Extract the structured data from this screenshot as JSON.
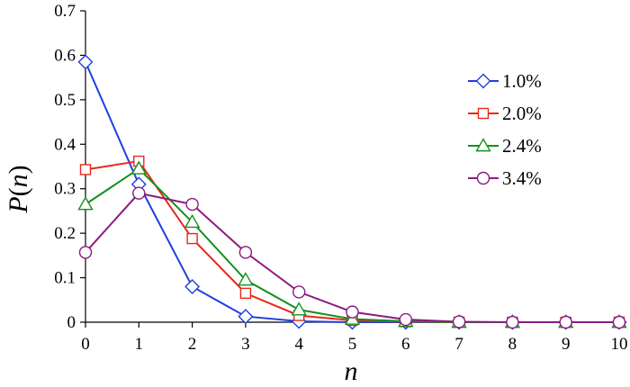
{
  "chart_data": {
    "type": "line",
    "title": "",
    "xlabel": "n",
    "ylabel_parts": {
      "main": "P",
      "open": "(",
      "var": "n",
      "close": ")"
    },
    "x": [
      0,
      1,
      2,
      3,
      4,
      5,
      6,
      7,
      8,
      9,
      10
    ],
    "xlim": [
      0,
      10
    ],
    "ylim": [
      0,
      0.7
    ],
    "yticks": [
      "0",
      "0.1",
      "0.2",
      "0.3",
      "0.4",
      "0.5",
      "0.6",
      "0.7"
    ],
    "xticks": [
      "0",
      "1",
      "2",
      "3",
      "4",
      "5",
      "6",
      "7",
      "8",
      "9",
      "10"
    ],
    "grid": false,
    "legend_position": "right",
    "series": [
      {
        "name": "1.0%",
        "color": "#1f3fe0",
        "marker": "diamond",
        "values": [
          0.585,
          0.31,
          0.08,
          0.013,
          0.002,
          0.0,
          0.0,
          0.0,
          0.0,
          0.0,
          0.0
        ]
      },
      {
        "name": "2.0%",
        "color": "#e8281c",
        "marker": "square",
        "values": [
          0.343,
          0.362,
          0.188,
          0.065,
          0.015,
          0.004,
          0.001,
          0.0,
          0.0,
          0.0,
          0.0
        ]
      },
      {
        "name": "2.4%",
        "color": "#15901e",
        "marker": "triangle",
        "values": [
          0.265,
          0.345,
          0.225,
          0.095,
          0.028,
          0.007,
          0.002,
          0.0,
          0.0,
          0.0,
          0.0
        ]
      },
      {
        "name": "3.4%",
        "color": "#8c1a80",
        "marker": "circle",
        "values": [
          0.157,
          0.29,
          0.265,
          0.157,
          0.068,
          0.023,
          0.006,
          0.001,
          0.0,
          0.0,
          0.0
        ]
      }
    ]
  }
}
